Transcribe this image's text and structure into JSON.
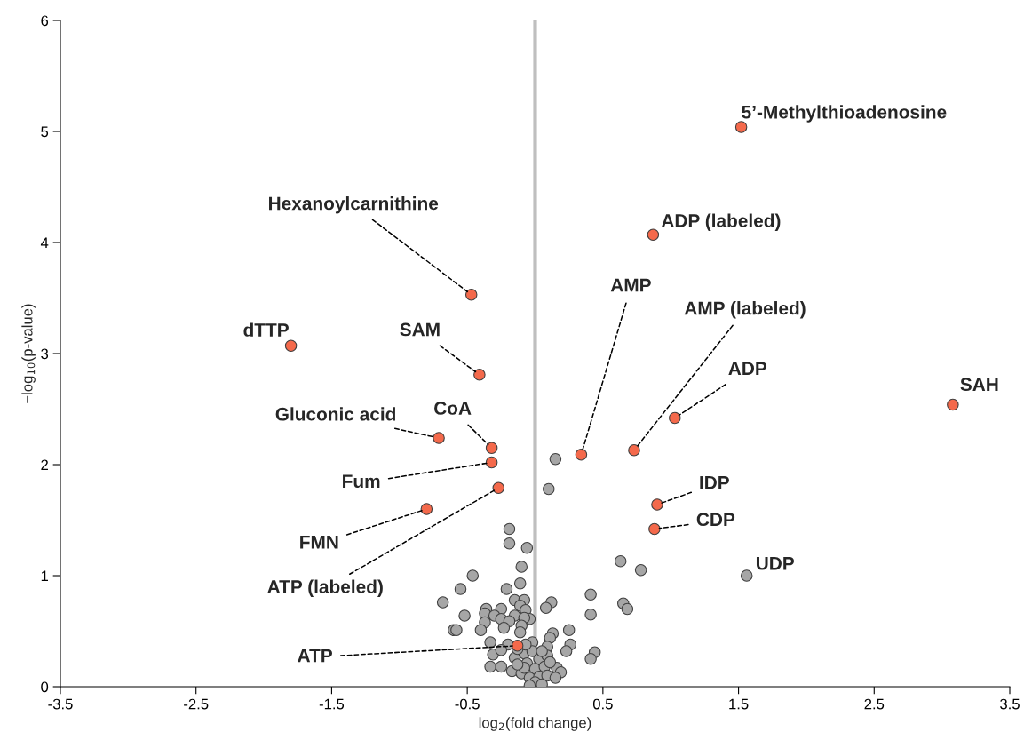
{
  "chart_data": {
    "type": "scatter",
    "xlabel": "log$_{2}$(fold change)",
    "ylabel": "−log$_{10}$(p-value)",
    "xlim": [
      -3.5,
      3.5
    ],
    "xticks": [
      -3.5,
      -2.5,
      -1.5,
      -0.5,
      0.5,
      1.5,
      2.5,
      3.5
    ],
    "ylim": [
      0,
      6
    ],
    "yticks": [
      0,
      1,
      2,
      3,
      4,
      5,
      6
    ],
    "grid": false,
    "legend": false,
    "marker": "circle",
    "ref_lines": [
      {
        "axis": "x",
        "value": 0,
        "color": "#bfbfbf"
      }
    ],
    "series": [
      {
        "color": "#a6a6a6",
        "x": [
          1.56,
          0.15,
          0.1,
          -0.19,
          -0.19,
          -0.06,
          -0.1,
          -0.46,
          -0.55,
          -0.21,
          -0.11,
          -0.68,
          -0.15,
          -0.08,
          -0.11,
          -0.36,
          -0.25,
          -0.07,
          -0.37,
          -0.3,
          -0.52,
          -0.15,
          -0.25,
          -0.19,
          -0.04,
          -0.08,
          -0.37,
          -0.1,
          -0.23,
          -0.6,
          -0.58,
          -0.4,
          -0.11,
          0.12,
          0.08,
          0.41,
          0.63,
          0.78,
          0.41,
          0.65,
          0.68,
          0.25,
          0.13,
          0.11,
          0.26,
          0.23,
          0.44,
          0.41,
          -0.33,
          -0.2,
          -0.31,
          -0.25,
          -0.33,
          -0.25,
          -0.17,
          -0.02,
          0.09,
          -0.15,
          -0.08,
          -0.02,
          0.03,
          0.09,
          -0.06,
          0.0,
          0.07,
          0.16,
          0.19,
          -0.1,
          -0.04,
          0.03,
          0.09,
          0.15,
          0.0,
          -0.04,
          0.05,
          -0.08,
          -0.13,
          0.11,
          0.05,
          -0.07,
          -0.13
        ],
        "values": [
          1.0,
          2.05,
          1.78,
          1.42,
          1.29,
          1.25,
          1.08,
          1.0,
          0.88,
          0.88,
          0.93,
          0.76,
          0.78,
          0.78,
          0.73,
          0.7,
          0.7,
          0.69,
          0.66,
          0.64,
          0.64,
          0.64,
          0.61,
          0.59,
          0.61,
          0.62,
          0.58,
          0.55,
          0.53,
          0.51,
          0.51,
          0.51,
          0.49,
          0.76,
          0.71,
          0.83,
          1.13,
          1.05,
          0.65,
          0.75,
          0.7,
          0.51,
          0.48,
          0.44,
          0.38,
          0.32,
          0.31,
          0.25,
          0.4,
          0.38,
          0.29,
          0.33,
          0.18,
          0.18,
          0.14,
          0.4,
          0.36,
          0.26,
          0.3,
          0.32,
          0.25,
          0.28,
          0.21,
          0.16,
          0.18,
          0.17,
          0.13,
          0.12,
          0.08,
          0.09,
          0.1,
          0.08,
          0.04,
          0.01,
          0.02,
          0.17,
          0.2,
          0.22,
          0.32,
          0.38,
          0.34
        ]
      },
      {
        "color": "#f4694b",
        "x": [
          1.52,
          0.87,
          -0.47,
          -1.8,
          -0.41,
          3.08,
          1.03,
          -0.71,
          -0.32,
          -0.32,
          0.34,
          0.73,
          -0.27,
          -0.8,
          0.9,
          0.88,
          -0.13
        ],
        "values": [
          5.04,
          4.07,
          3.53,
          3.07,
          2.81,
          2.54,
          2.42,
          2.24,
          2.15,
          2.02,
          2.09,
          2.13,
          1.79,
          1.6,
          1.64,
          1.42,
          0.37
        ]
      }
    ],
    "annotations": [
      {
        "text": "5’-Methylthioadenosine",
        "x": 1.52,
        "y": 5.04
      },
      {
        "text": "ADP (labeled)",
        "x": 0.87,
        "y": 4.07
      },
      {
        "text": "Hexanoylcarnithine",
        "x": -0.47,
        "y": 3.53
      },
      {
        "text": "dTTP",
        "x": -1.8,
        "y": 3.07
      },
      {
        "text": "SAM",
        "x": -0.41,
        "y": 2.81
      },
      {
        "text": "SAH",
        "x": 3.08,
        "y": 2.54
      },
      {
        "text": "ADP",
        "x": 1.03,
        "y": 2.42
      },
      {
        "text": "Gluconic acid",
        "x": -0.71,
        "y": 2.24
      },
      {
        "text": "CoA",
        "x": -0.32,
        "y": 2.15
      },
      {
        "text": "Fum",
        "x": -0.32,
        "y": 2.02
      },
      {
        "text": "AMP",
        "x": 0.34,
        "y": 2.09
      },
      {
        "text": "AMP (labeled)",
        "x": 0.73,
        "y": 2.13
      },
      {
        "text": "ATP (labeled)",
        "x": -0.27,
        "y": 1.79
      },
      {
        "text": "FMN",
        "x": -0.8,
        "y": 1.6
      },
      {
        "text": "IDP",
        "x": 0.9,
        "y": 1.64
      },
      {
        "text": "CDP",
        "x": 0.88,
        "y": 1.42
      },
      {
        "text": "UDP",
        "x": 1.56,
        "y": 1.0
      },
      {
        "text": "ATP",
        "x": -0.13,
        "y": 0.37
      }
    ]
  }
}
